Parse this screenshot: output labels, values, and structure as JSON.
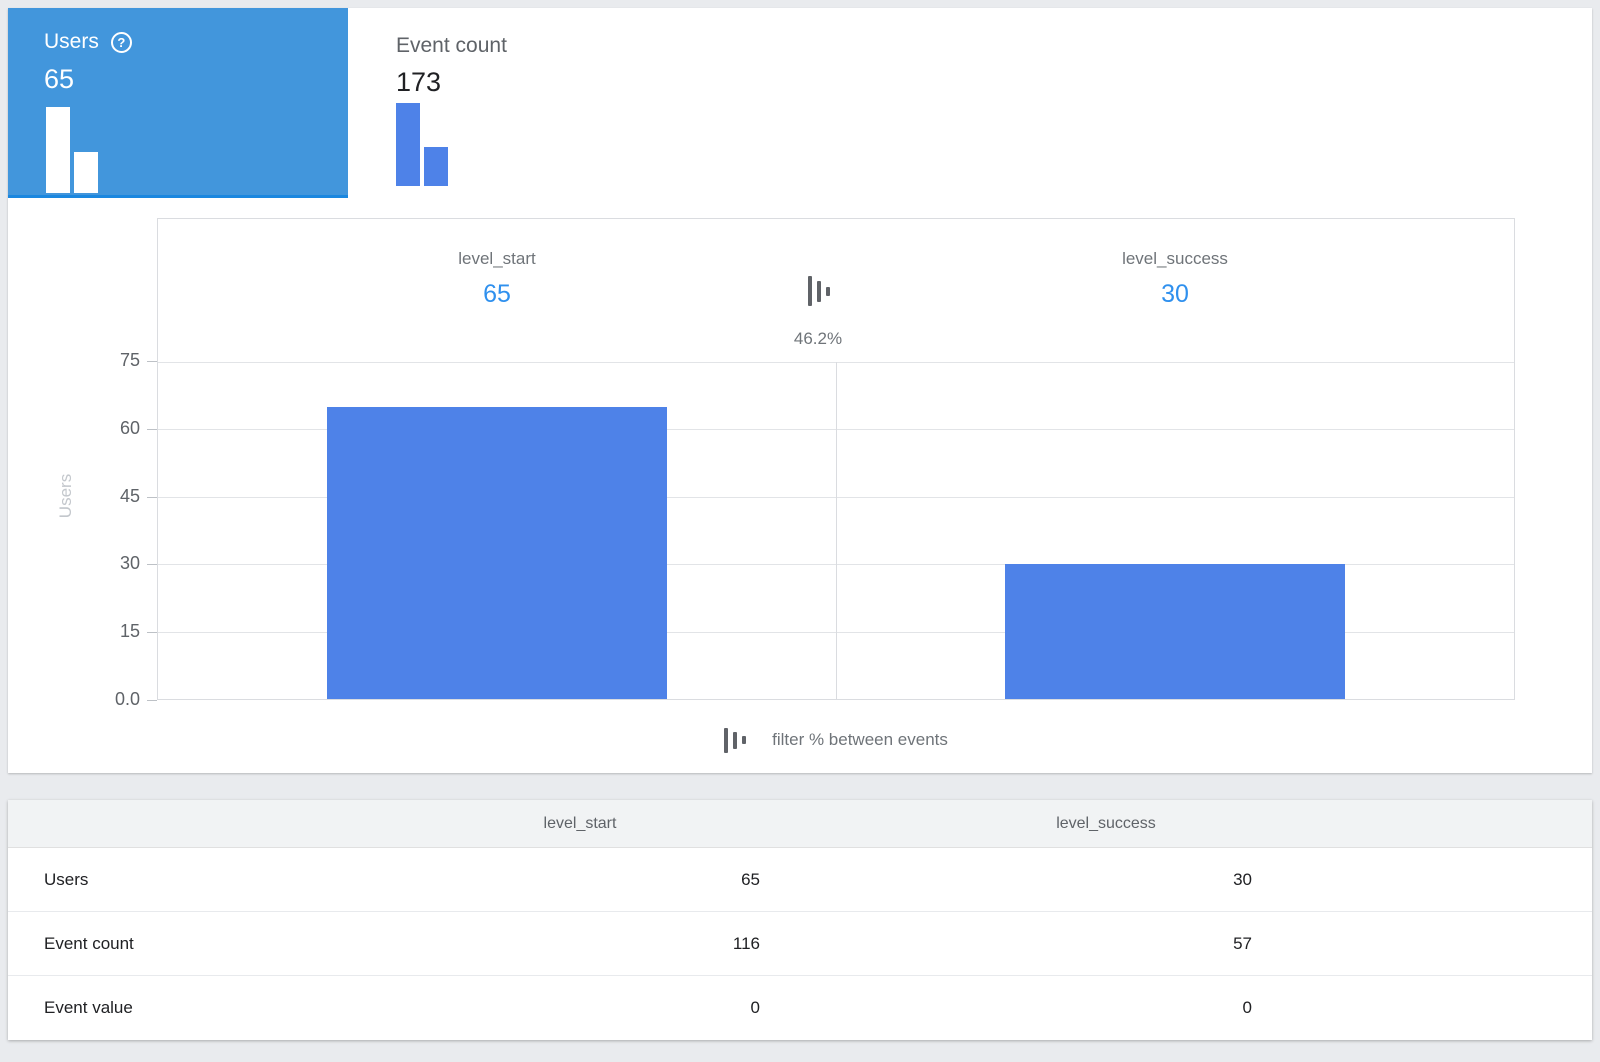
{
  "metric_tabs": [
    {
      "label": "Users",
      "value": "65",
      "help_glyph": "?",
      "selected": true
    },
    {
      "label": "Event count",
      "value": "173",
      "selected": false
    }
  ],
  "chart_data": {
    "type": "bar",
    "categories": [
      "level_start",
      "level_success"
    ],
    "series": [
      {
        "name": "Users",
        "values": [
          65,
          30
        ]
      }
    ],
    "conversion_rate": "46.2%",
    "ylabel": "Users",
    "ylim": [
      0,
      75
    ],
    "yticks": [
      "75",
      "60",
      "45",
      "30",
      "15",
      "0.0"
    ],
    "grid": "horizontal gridlines on, vertical divider between steps",
    "legend_label": "filter % between events"
  },
  "table": {
    "columns": [
      "level_start",
      "level_success"
    ],
    "rows": [
      {
        "label": "Users",
        "values": [
          "65",
          "30"
        ]
      },
      {
        "label": "Event count",
        "values": [
          "116",
          "57"
        ]
      },
      {
        "label": "Event value",
        "values": [
          "0",
          "0"
        ]
      }
    ]
  },
  "colors": {
    "selected_tab_bg": "#4296dc",
    "selected_tab_bottom_border": "#1b87df",
    "bar_blue": "#4e82e8",
    "step_value_blue": "#2f90ee",
    "page_bg": "#e9ebee",
    "table_header_bg": "#f1f3f4"
  }
}
